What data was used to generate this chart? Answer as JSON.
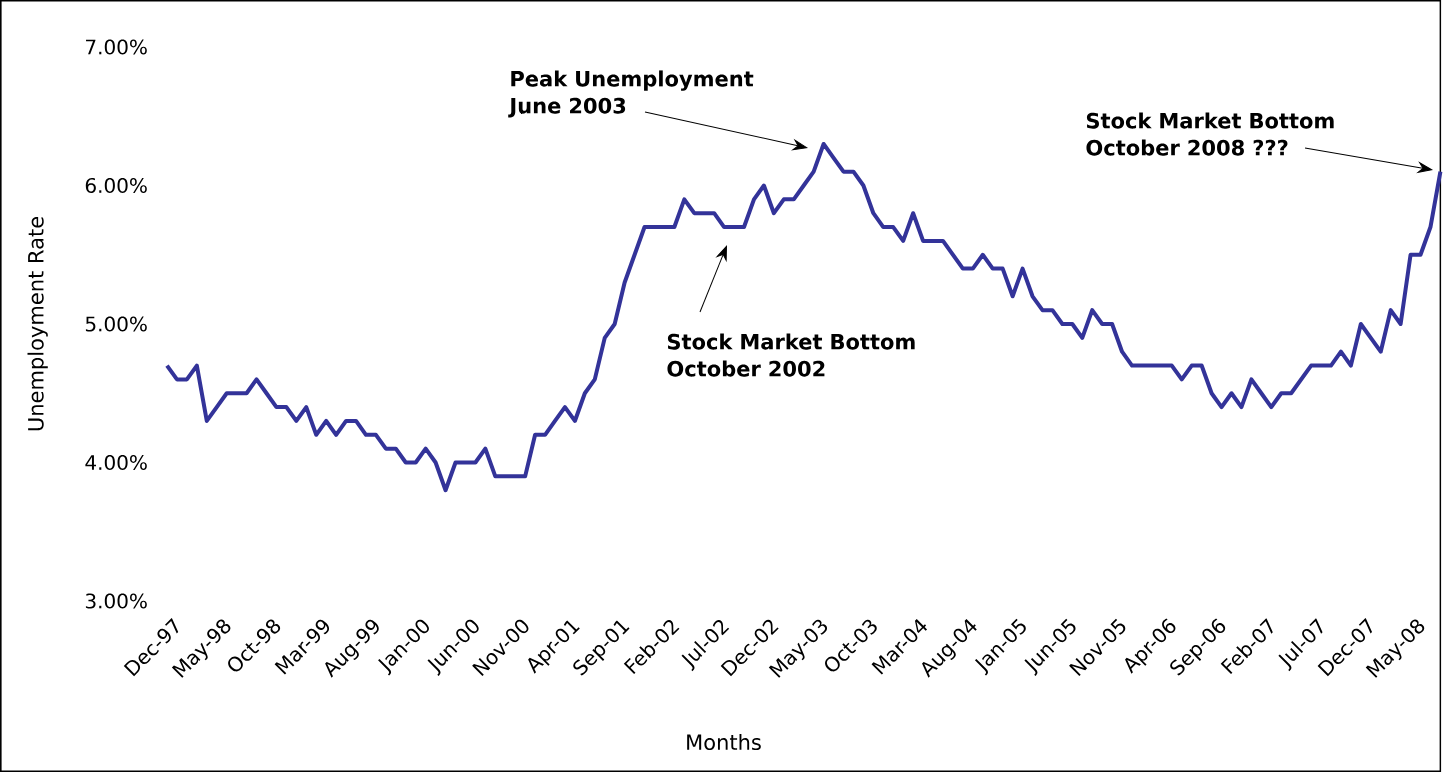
{
  "chart_data": {
    "type": "line",
    "xlabel": "Months",
    "ylabel": "Unemployment Rate",
    "color": "#333399",
    "x": [
      "1997-12",
      "1998-01",
      "1998-02",
      "1998-03",
      "1998-04",
      "1998-05",
      "1998-06",
      "1998-07",
      "1998-08",
      "1998-09",
      "1998-10",
      "1998-11",
      "1998-12",
      "1999-01",
      "1999-02",
      "1999-03",
      "1999-04",
      "1999-05",
      "1999-06",
      "1999-07",
      "1999-08",
      "1999-09",
      "1999-10",
      "1999-11",
      "1999-12",
      "2000-01",
      "2000-02",
      "2000-03",
      "2000-04",
      "2000-05",
      "2000-06",
      "2000-07",
      "2000-08",
      "2000-09",
      "2000-10",
      "2000-11",
      "2000-12",
      "2001-01",
      "2001-02",
      "2001-03",
      "2001-04",
      "2001-05",
      "2001-06",
      "2001-07",
      "2001-08",
      "2001-09",
      "2001-10",
      "2001-11",
      "2001-12",
      "2002-01",
      "2002-02",
      "2002-03",
      "2002-04",
      "2002-05",
      "2002-06",
      "2002-07",
      "2002-08",
      "2002-09",
      "2002-10",
      "2002-11",
      "2002-12",
      "2003-01",
      "2003-02",
      "2003-03",
      "2003-04",
      "2003-05",
      "2003-06",
      "2003-07",
      "2003-08",
      "2003-09",
      "2003-10",
      "2003-11",
      "2003-12",
      "2004-01",
      "2004-02",
      "2004-03",
      "2004-04",
      "2004-05",
      "2004-06",
      "2004-07",
      "2004-08",
      "2004-09",
      "2004-10",
      "2004-11",
      "2004-12",
      "2005-01",
      "2005-02",
      "2005-03",
      "2005-04",
      "2005-05",
      "2005-06",
      "2005-07",
      "2005-08",
      "2005-09",
      "2005-10",
      "2005-11",
      "2005-12",
      "2006-01",
      "2006-02",
      "2006-03",
      "2006-04",
      "2006-05",
      "2006-06",
      "2006-07",
      "2006-08",
      "2006-09",
      "2006-10",
      "2006-11",
      "2006-12",
      "2007-01",
      "2007-02",
      "2007-03",
      "2007-04",
      "2007-05",
      "2007-06",
      "2007-07",
      "2007-08",
      "2007-09",
      "2007-10",
      "2007-11",
      "2007-12",
      "2008-01",
      "2008-02",
      "2008-03",
      "2008-04",
      "2008-05",
      "2008-06",
      "2008-07",
      "2008-08"
    ],
    "values": [
      4.7,
      4.6,
      4.6,
      4.7,
      4.3,
      4.4,
      4.5,
      4.5,
      4.5,
      4.6,
      4.5,
      4.4,
      4.4,
      4.3,
      4.4,
      4.2,
      4.3,
      4.2,
      4.3,
      4.3,
      4.2,
      4.2,
      4.1,
      4.1,
      4.0,
      4.0,
      4.1,
      4.0,
      3.8,
      4.0,
      4.0,
      4.0,
      4.1,
      3.9,
      3.9,
      3.9,
      3.9,
      4.2,
      4.2,
      4.3,
      4.4,
      4.3,
      4.5,
      4.6,
      4.9,
      5.0,
      5.3,
      5.5,
      5.7,
      5.7,
      5.7,
      5.7,
      5.9,
      5.8,
      5.8,
      5.8,
      5.7,
      5.7,
      5.7,
      5.9,
      6.0,
      5.8,
      5.9,
      5.9,
      6.0,
      6.1,
      6.3,
      6.2,
      6.1,
      6.1,
      6.0,
      5.8,
      5.7,
      5.7,
      5.6,
      5.8,
      5.6,
      5.6,
      5.6,
      5.5,
      5.4,
      5.4,
      5.5,
      5.4,
      5.4,
      5.2,
      5.4,
      5.2,
      5.1,
      5.1,
      5.0,
      5.0,
      4.9,
      5.1,
      5.0,
      5.0,
      4.8,
      4.7,
      4.7,
      4.7,
      4.7,
      4.7,
      4.6,
      4.7,
      4.7,
      4.5,
      4.4,
      4.5,
      4.4,
      4.6,
      4.5,
      4.4,
      4.5,
      4.5,
      4.6,
      4.7,
      4.7,
      4.7,
      4.8,
      4.7,
      5.0,
      4.9,
      4.8,
      5.1,
      5.0,
      5.5,
      5.5,
      5.7,
      6.1
    ],
    "xlim": [
      "1997-12",
      "2008-08"
    ],
    "xticks": [
      {
        "value": "1997-12",
        "label": "Dec-97"
      },
      {
        "value": "1998-05",
        "label": "May-98"
      },
      {
        "value": "1998-10",
        "label": "Oct-98"
      },
      {
        "value": "1999-03",
        "label": "Mar-99"
      },
      {
        "value": "1999-08",
        "label": "Aug-99"
      },
      {
        "value": "2000-01",
        "label": "Jan-00"
      },
      {
        "value": "2000-06",
        "label": "Jun-00"
      },
      {
        "value": "2000-11",
        "label": "Nov-00"
      },
      {
        "value": "2001-04",
        "label": "Apr-01"
      },
      {
        "value": "2001-09",
        "label": "Sep-01"
      },
      {
        "value": "2002-02",
        "label": "Feb-02"
      },
      {
        "value": "2002-07",
        "label": "Jul-02"
      },
      {
        "value": "2002-12",
        "label": "Dec-02"
      },
      {
        "value": "2003-05",
        "label": "May-03"
      },
      {
        "value": "2003-10",
        "label": "Oct-03"
      },
      {
        "value": "2004-03",
        "label": "Mar-04"
      },
      {
        "value": "2004-08",
        "label": "Aug-04"
      },
      {
        "value": "2005-01",
        "label": "Jan-05"
      },
      {
        "value": "2005-06",
        "label": "Jun-05"
      },
      {
        "value": "2005-11",
        "label": "Nov-05"
      },
      {
        "value": "2006-04",
        "label": "Apr-06"
      },
      {
        "value": "2006-09",
        "label": "Sep-06"
      },
      {
        "value": "2007-02",
        "label": "Feb-07"
      },
      {
        "value": "2007-07",
        "label": "Jul-07"
      },
      {
        "value": "2007-12",
        "label": "Dec-07"
      },
      {
        "value": "2008-05",
        "label": "May-08"
      }
    ],
    "ylim": [
      3,
      7
    ],
    "yticks": [
      {
        "value": 3,
        "label": "3.00%"
      },
      {
        "value": 4,
        "label": "4.00%"
      },
      {
        "value": 5,
        "label": "5.00%"
      },
      {
        "value": 6,
        "label": "6.00%"
      },
      {
        "value": 7,
        "label": "7.00%"
      }
    ],
    "annotations": [
      "Peak Unemployment June 2003",
      "Stock Market Bottom October 2002",
      "Stock Market Bottom October 2008 ???"
    ]
  }
}
